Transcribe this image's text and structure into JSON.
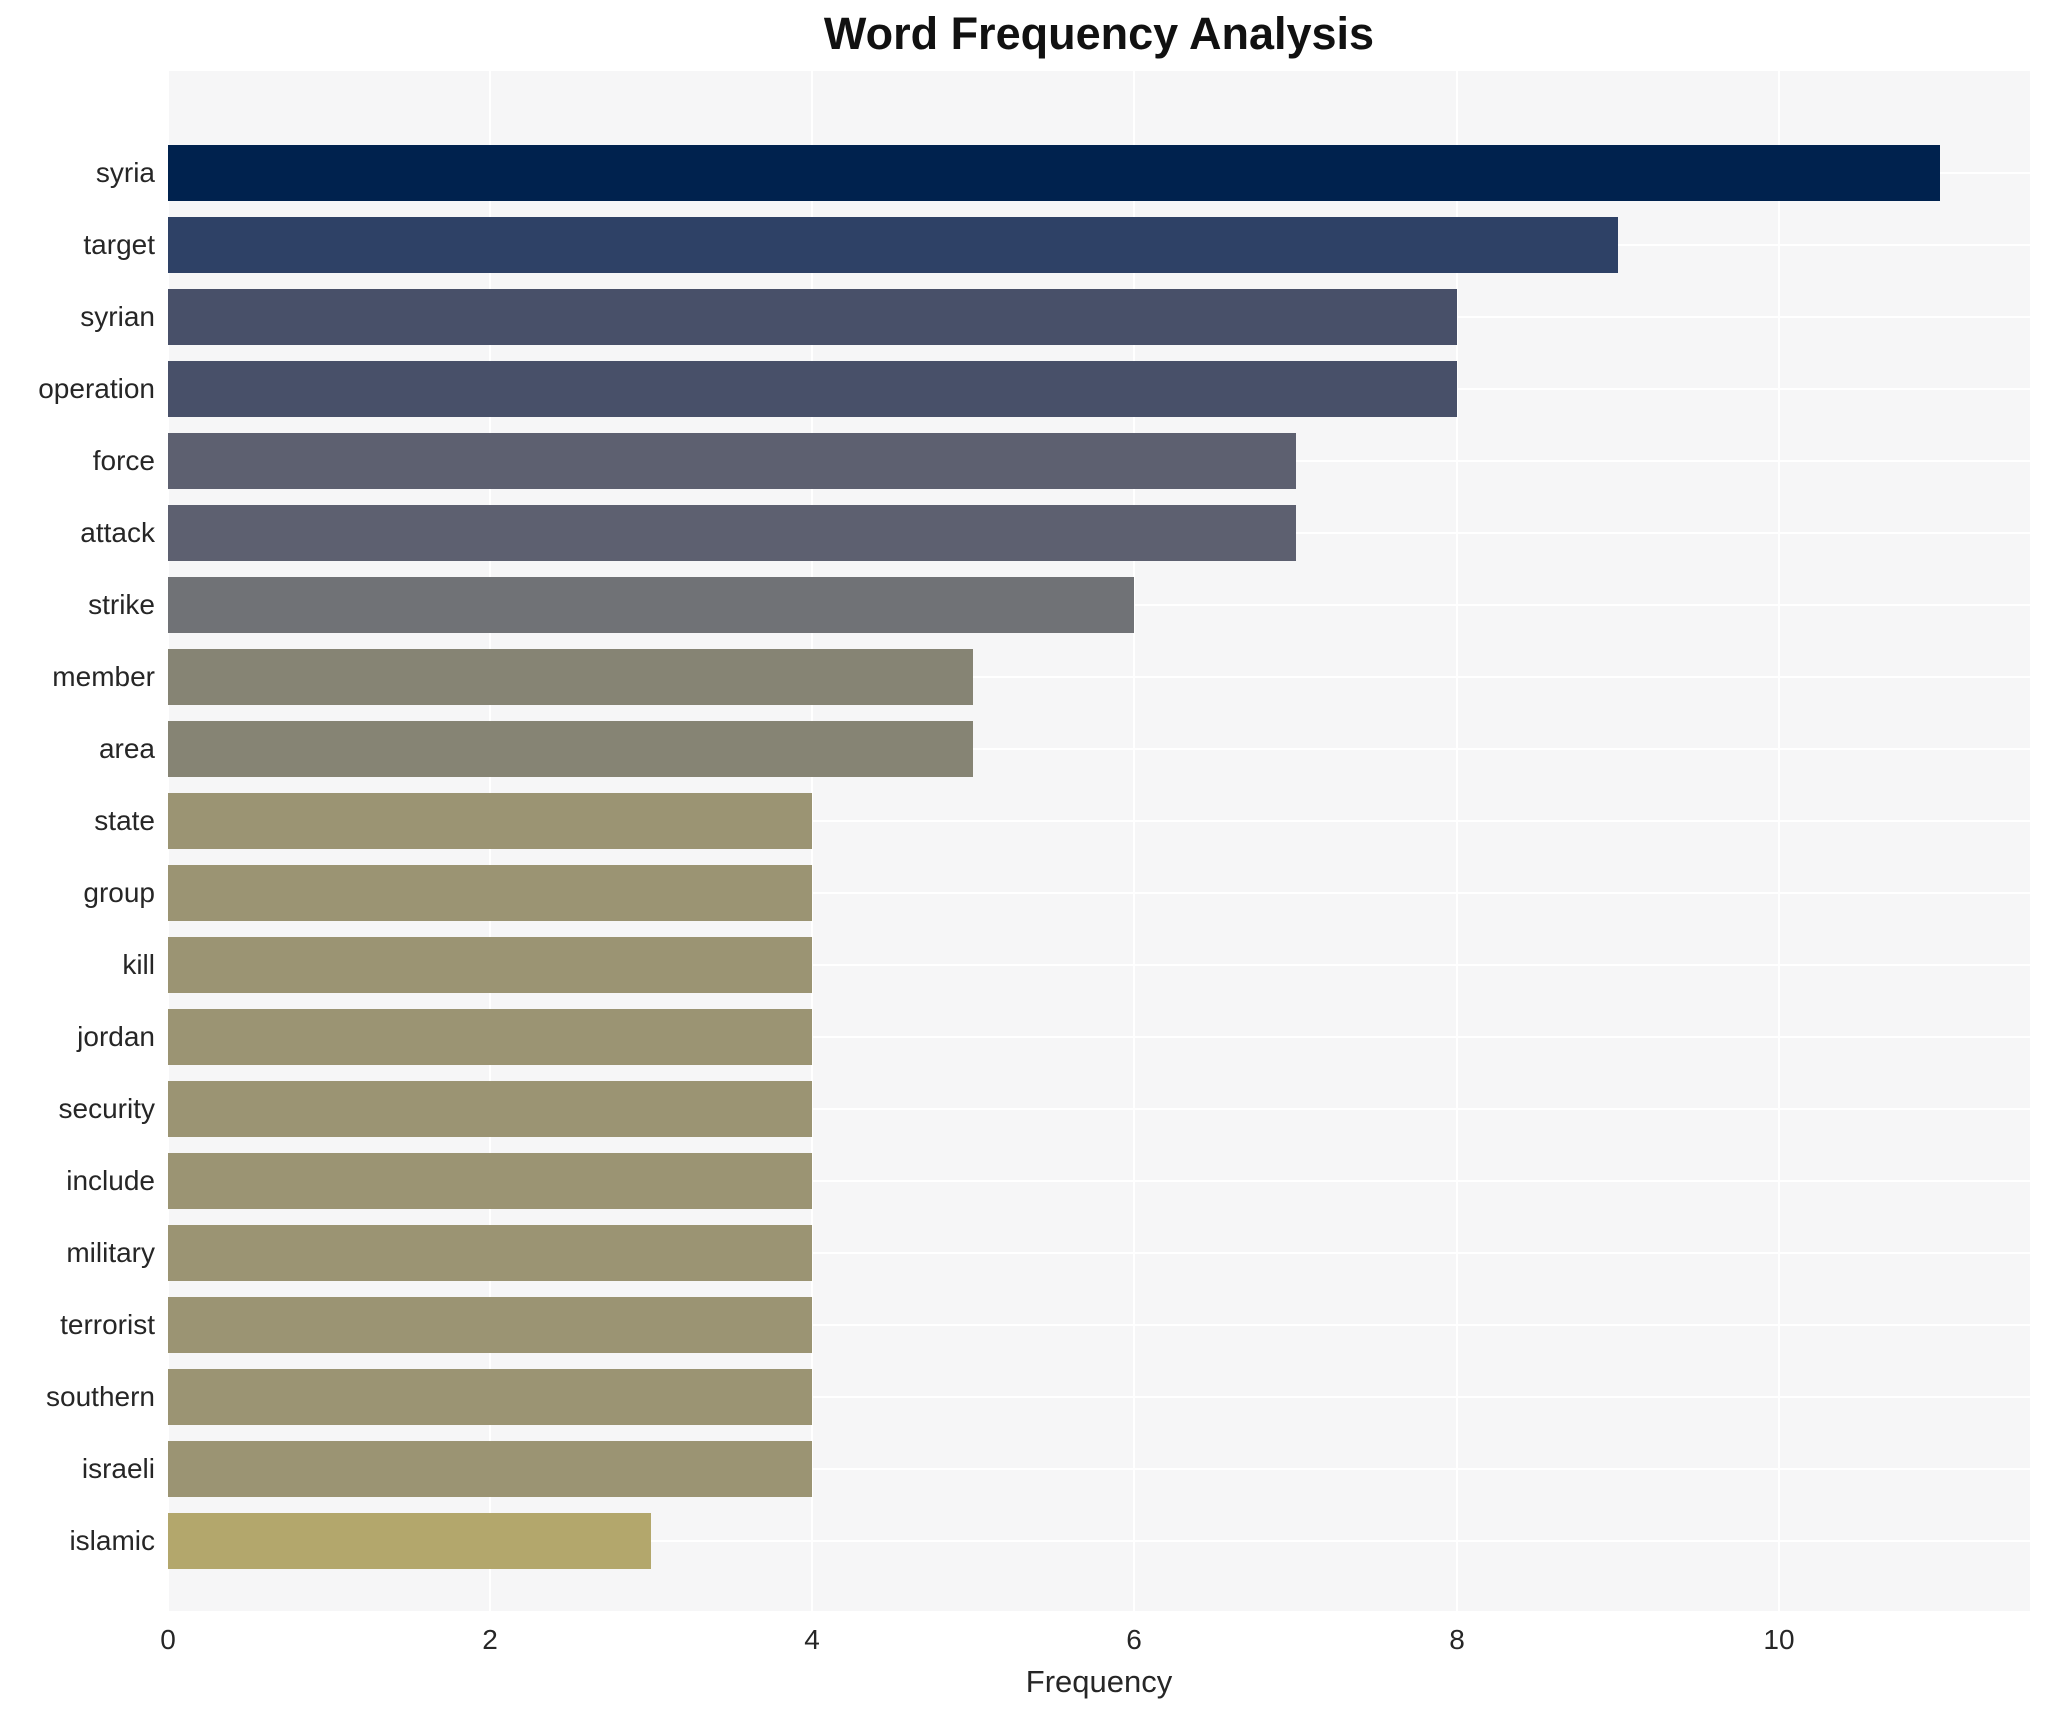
{
  "chart_data": {
    "type": "bar",
    "orientation": "horizontal",
    "title": "Word Frequency Analysis",
    "xlabel": "Frequency",
    "ylabel": "",
    "categories": [
      "syria",
      "target",
      "syrian",
      "operation",
      "force",
      "attack",
      "strike",
      "member",
      "area",
      "state",
      "group",
      "kill",
      "jordan",
      "security",
      "include",
      "military",
      "terrorist",
      "southern",
      "israeli",
      "islamic"
    ],
    "values": [
      11,
      9,
      8,
      8,
      7,
      7,
      6,
      5,
      5,
      4,
      4,
      4,
      4,
      4,
      4,
      4,
      4,
      4,
      4,
      3
    ],
    "bar_colors": [
      "#00224e",
      "#2e4166",
      "#485069",
      "#485069",
      "#5d6070",
      "#5d6070",
      "#707276",
      "#868474",
      "#868474",
      "#9b9473",
      "#9b9473",
      "#9b9473",
      "#9b9473",
      "#9b9473",
      "#9b9473",
      "#9b9473",
      "#9b9473",
      "#9b9473",
      "#9b9473",
      "#b3a76c"
    ],
    "xticks": [
      0,
      2,
      4,
      6,
      8,
      10
    ],
    "xlim": [
      0,
      11.56
    ],
    "grid": true,
    "legend": false,
    "plot_background": "#f6f6f7",
    "gridline_color": "#ffffff",
    "tick_text_color": "#262626",
    "title_color": "#111111"
  }
}
